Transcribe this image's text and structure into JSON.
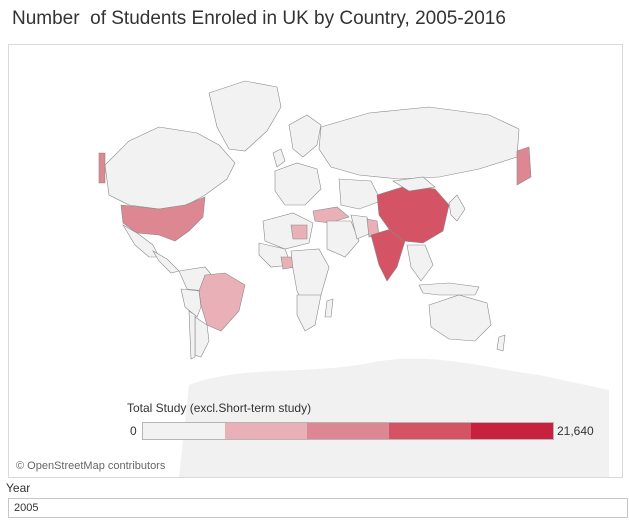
{
  "title": "Number  of Students Enroled in UK by Country, 2005-2016",
  "legend": {
    "title": "Total Study (excl.Short-term study)",
    "min_label": "0",
    "max_label": "21,640",
    "steps": [
      "#f2f2f2",
      "#e9b1b7",
      "#dc8791",
      "#d45466",
      "#c8203f"
    ]
  },
  "attribution": "© OpenStreetMap contributors",
  "filter": {
    "label": "Year",
    "selected": "2005"
  },
  "colors": {
    "land_default": "#f2f2f2",
    "border": "#8a8a8a",
    "background": "#ffffff",
    "basemap_ghost": "#f1f1f1"
  },
  "highlighted_countries": [
    {
      "name": "China",
      "shade": "#d45466"
    },
    {
      "name": "India",
      "shade": "#d45466"
    },
    {
      "name": "United States",
      "shade": "#dc8791"
    },
    {
      "name": "Russia (eastern part)",
      "shade": "#dc8791"
    },
    {
      "name": "Canada (western edge)",
      "shade": "#dc8791"
    },
    {
      "name": "Brazil",
      "shade": "#e9b1b7"
    },
    {
      "name": "Pakistan",
      "shade": "#e9b1b7"
    },
    {
      "name": "Turkey",
      "shade": "#e9b1b7"
    },
    {
      "name": "Libya",
      "shade": "#e9b1b7"
    },
    {
      "name": "Nigeria",
      "shade": "#e9b1b7"
    }
  ]
}
